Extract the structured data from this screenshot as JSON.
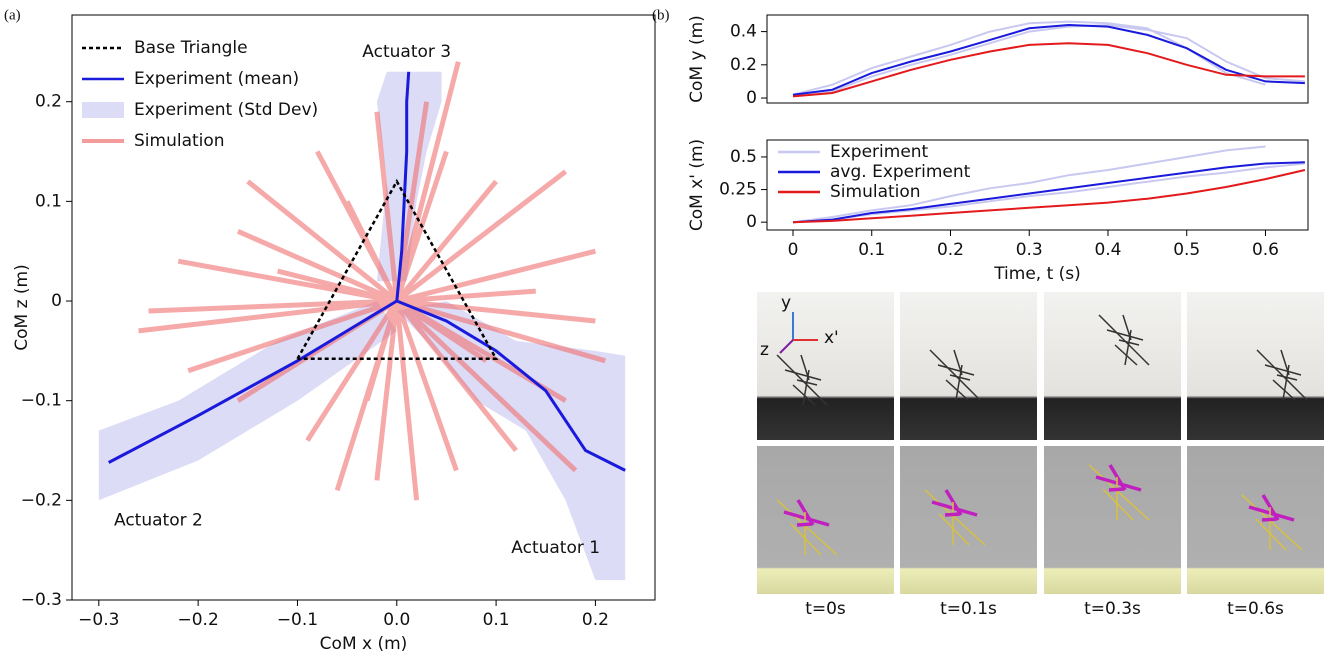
{
  "panels": [
    "(a)",
    "(b)"
  ],
  "chart_data": [
    {
      "type": "line",
      "xlabel": "CoM x (m)",
      "ylabel": "CoM z (m)",
      "annotations": [
        "Actuator 3",
        "Actuator 2",
        "Actuator 1"
      ],
      "xlim": [
        -0.327,
        0.26
      ],
      "ylim": [
        -0.3,
        0.287
      ],
      "xticks": [
        {
          "value": -0.3,
          "label": "−0.3"
        },
        {
          "value": -0.2,
          "label": "−0.2"
        },
        {
          "value": -0.1,
          "label": "−0.1"
        },
        {
          "value": 0,
          "label": "0.0"
        },
        0.1,
        0.2
      ],
      "yticks": [
        {
          "value": -0.3,
          "label": "−0.3"
        },
        {
          "value": -0.2,
          "label": "−0.2"
        },
        {
          "value": -0.1,
          "label": "−0.1"
        },
        0,
        0.1,
        0.2
      ],
      "legend": "upper left",
      "series": [
        {
          "name": "Base Triangle",
          "color": "#000000",
          "style": "dashed",
          "x": [
            -0.1,
            0,
            0.1,
            -0.1
          ],
          "values": [
            -0.058,
            0.12,
            -0.058,
            -0.058
          ]
        },
        {
          "name": "Experiment (mean)",
          "color": "#1a1adc",
          "style": "solid",
          "x": [
            0,
            0.005,
            0.01,
            0.01,
            0.012,
            null,
            0,
            -0.05,
            -0.1,
            -0.2,
            -0.29,
            null,
            0,
            0.05,
            0.1,
            0.15,
            0.19,
            0.23
          ],
          "values": [
            0,
            0.05,
            0.15,
            0.2,
            0.23,
            null,
            0,
            -0.03,
            -0.06,
            -0.115,
            -0.162,
            null,
            0,
            -0.02,
            -0.05,
            -0.09,
            -0.15,
            -0.17
          ]
        },
        {
          "name": "Experiment (Std Dev)",
          "color": "#dcdcf6",
          "style": "area",
          "x": [
            -0.02,
            -0.01,
            -0.02,
            -0.01,
            0.045,
            0.045,
            0.03,
            0.02,
            0.01,
            null,
            -0.3,
            -0.3,
            -0.2,
            -0.1,
            0,
            -0.02,
            -0.12,
            -0.22,
            null,
            0,
            0.05,
            0.12,
            0.2,
            0.23,
            0.23,
            0.2,
            0.17,
            0.13,
            0.08,
            0.03
          ],
          "values": [
            0.02,
            0.12,
            0.2,
            0.23,
            0.23,
            0.2,
            0.15,
            0.1,
            0.02,
            null,
            -0.13,
            -0.2,
            -0.16,
            -0.1,
            -0.03,
            0,
            -0.04,
            -0.1,
            null,
            -0.01,
            0,
            -0.04,
            -0.05,
            -0.055,
            -0.28,
            -0.28,
            -0.2,
            -0.13,
            -0.1,
            -0.04
          ]
        },
        {
          "name": "Simulation",
          "color": "#f07070",
          "style": "rays",
          "x": [
            0,
            0.062,
            null,
            0,
            0.03,
            null,
            0,
            -0.02,
            null,
            0,
            -0.08,
            null,
            0,
            -0.15,
            null,
            0,
            -0.16,
            null,
            0,
            -0.22,
            null,
            0,
            -0.25,
            null,
            0,
            -0.26,
            null,
            0,
            -0.21,
            null,
            0,
            -0.16,
            null,
            0,
            -0.09,
            null,
            0,
            -0.06,
            null,
            0,
            -0.02,
            null,
            0,
            0.02,
            null,
            0,
            0.06,
            null,
            0,
            0.12,
            null,
            0,
            0.18,
            null,
            0,
            0.17,
            null,
            0,
            0.21,
            null,
            0,
            0.2,
            null,
            0,
            0.14,
            null,
            0,
            0.2,
            null,
            0,
            0.17,
            null,
            0,
            0.1,
            null,
            0,
            0.05,
            null,
            0,
            -0.05,
            null,
            0,
            -0.12,
            null,
            0,
            0.09,
            null,
            0,
            -0.03
          ],
          "values": [
            0,
            0.24,
            null,
            0,
            0.2,
            null,
            0,
            0.19,
            null,
            0,
            0.15,
            null,
            0,
            0.12,
            null,
            0,
            0.07,
            null,
            0,
            0.04,
            null,
            0,
            -0.01,
            null,
            0,
            -0.03,
            null,
            0,
            -0.07,
            null,
            0,
            -0.1,
            null,
            0,
            -0.14,
            null,
            0,
            -0.19,
            null,
            0,
            -0.18,
            null,
            0,
            -0.2,
            null,
            0,
            -0.17,
            null,
            0,
            -0.15,
            null,
            0,
            -0.17,
            null,
            0,
            -0.1,
            null,
            0,
            -0.06,
            null,
            0,
            -0.02,
            null,
            0,
            0.01,
            null,
            0,
            0.05,
            null,
            0,
            0.13,
            null,
            0,
            0.12,
            null,
            0,
            0.15,
            null,
            0,
            0.1,
            null,
            0,
            0.03,
            null,
            0,
            -0.06,
            null,
            0,
            -0.1
          ]
        }
      ]
    },
    {
      "type": "line",
      "ylabel": "CoM y (m)",
      "xlim": [
        -0.033,
        0.654
      ],
      "ylim": [
        -0.03,
        0.5
      ],
      "yticks": [
        0,
        0.2,
        0.4
      ],
      "series": [
        {
          "color": "#c8c8f0",
          "style": "solid",
          "x": [
            0,
            0.05,
            0.1,
            0.15,
            0.2,
            0.25,
            0.3,
            0.35,
            0.4,
            0.45,
            0.5,
            0.55,
            0.6,
            null,
            0,
            0.05,
            0.1,
            0.15,
            0.2,
            0.25,
            0.3,
            0.35,
            0.4,
            0.45,
            0.5,
            0.55,
            0.6,
            0.65
          ],
          "values": [
            0.02,
            0.08,
            0.18,
            0.25,
            0.32,
            0.4,
            0.45,
            0.46,
            0.45,
            0.42,
            0.3,
            0.15,
            0.08,
            null,
            0.02,
            0.04,
            0.13,
            0.2,
            0.26,
            0.33,
            0.4,
            0.43,
            0.44,
            0.41,
            0.36,
            0.22,
            0.12,
            0.1
          ]
        },
        {
          "color": "#1a1adc",
          "style": "solid",
          "x": [
            0,
            0.05,
            0.1,
            0.15,
            0.2,
            0.25,
            0.3,
            0.35,
            0.4,
            0.45,
            0.5,
            0.55,
            0.6,
            0.65
          ],
          "values": [
            0.02,
            0.05,
            0.15,
            0.22,
            0.28,
            0.35,
            0.42,
            0.44,
            0.43,
            0.38,
            0.3,
            0.17,
            0.1,
            0.09
          ]
        },
        {
          "color": "#e31a1c",
          "style": "solid",
          "x": [
            0,
            0.05,
            0.1,
            0.15,
            0.2,
            0.25,
            0.3,
            0.35,
            0.4,
            0.45,
            0.5,
            0.55,
            0.6,
            0.65
          ],
          "values": [
            0.01,
            0.03,
            0.1,
            0.17,
            0.23,
            0.28,
            0.32,
            0.33,
            0.32,
            0.27,
            0.2,
            0.14,
            0.13,
            0.13
          ]
        }
      ]
    },
    {
      "type": "line",
      "ylabel": "CoM x' (m)",
      "xlabel": "Time, t (s)",
      "xlim": [
        -0.033,
        0.654
      ],
      "ylim": [
        -0.06,
        0.63
      ],
      "xticks": [
        0,
        0.1,
        0.2,
        0.3,
        0.4,
        0.5,
        0.6
      ],
      "yticks": [
        0,
        0.25,
        0.5
      ],
      "legend": "upper left",
      "series": [
        {
          "name": "Experiment",
          "color": "#c8c8f0",
          "style": "solid",
          "x": [
            0,
            0.05,
            0.1,
            0.15,
            0.2,
            0.25,
            0.3,
            0.35,
            0.4,
            0.45,
            0.5,
            0.55,
            0.6,
            null,
            0,
            0.05,
            0.1,
            0.15,
            0.2,
            0.25,
            0.3,
            0.35,
            0.4,
            0.45,
            0.5,
            0.55,
            0.6,
            0.65
          ],
          "values": [
            0,
            0.04,
            0.09,
            0.13,
            0.2,
            0.26,
            0.3,
            0.36,
            0.4,
            0.45,
            0.5,
            0.55,
            0.58,
            null,
            0,
            0.02,
            0.06,
            0.09,
            0.12,
            0.16,
            0.2,
            0.23,
            0.27,
            0.31,
            0.35,
            0.38,
            0.42,
            0.45
          ]
        },
        {
          "name": "avg. Experiment",
          "color": "#1a1adc",
          "style": "solid",
          "x": [
            0,
            0.05,
            0.1,
            0.15,
            0.2,
            0.25,
            0.3,
            0.35,
            0.4,
            0.45,
            0.5,
            0.55,
            0.6,
            0.65
          ],
          "values": [
            0,
            0.02,
            0.07,
            0.1,
            0.14,
            0.18,
            0.22,
            0.26,
            0.3,
            0.34,
            0.38,
            0.42,
            0.45,
            0.46
          ]
        },
        {
          "name": "Simulation",
          "color": "#e31a1c",
          "style": "solid",
          "x": [
            0,
            0.05,
            0.1,
            0.15,
            0.2,
            0.25,
            0.3,
            0.35,
            0.4,
            0.45,
            0.5,
            0.55,
            0.6,
            0.65
          ],
          "values": [
            0,
            0.01,
            0.03,
            0.05,
            0.07,
            0.09,
            0.11,
            0.13,
            0.15,
            0.18,
            0.22,
            0.27,
            0.33,
            0.4
          ]
        }
      ]
    }
  ],
  "snapshots": {
    "axes": [
      "y",
      "x'",
      "z"
    ],
    "captions": [
      "t=0s",
      "t=0.1s",
      "t=0.3s",
      "t=0.6s"
    ]
  }
}
